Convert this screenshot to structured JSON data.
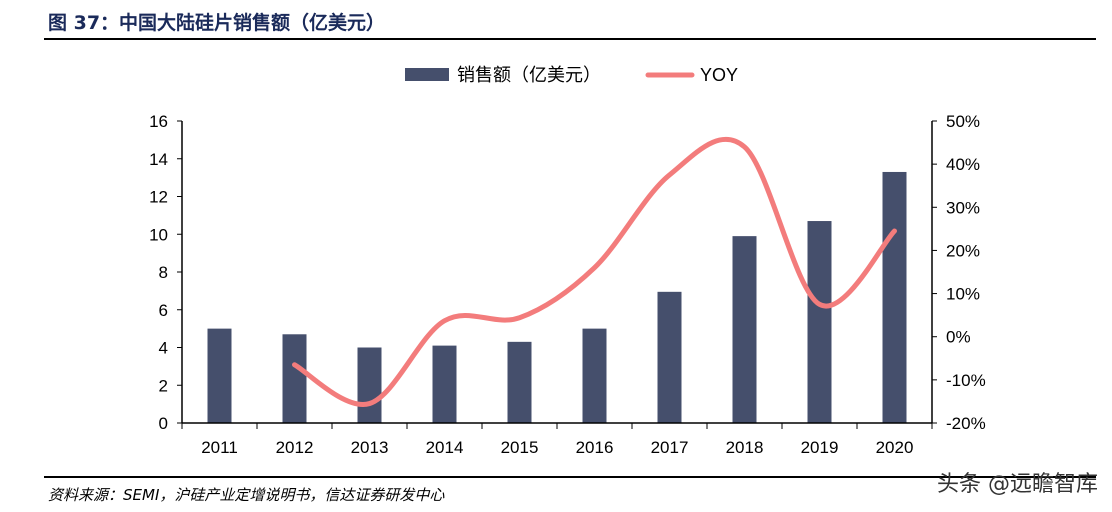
{
  "title": "图 37：中国大陆硅片销售额（亿美元）",
  "source": "资料来源：SEMI，沪硅产业定增说明书，信达证券研发中心",
  "watermark": "头条 @远瞻智库",
  "chart_data": {
    "type": "bar",
    "title": "",
    "categories": [
      "2011",
      "2012",
      "2013",
      "2014",
      "2015",
      "2016",
      "2017",
      "2018",
      "2019",
      "2020"
    ],
    "series": [
      {
        "name": "销售额（亿美元）",
        "type": "bar",
        "axis": "left",
        "color": "#454f6c",
        "values": [
          5.0,
          4.7,
          4.0,
          4.1,
          4.3,
          5.0,
          6.95,
          9.9,
          10.7,
          13.3
        ]
      },
      {
        "name": "YOY",
        "type": "line",
        "axis": "right",
        "color": "#f37c7c",
        "smooth": true,
        "values": [
          null,
          -6.5,
          -15.5,
          3.7,
          4.4,
          16,
          37.5,
          44,
          7.5,
          24.5
        ]
      }
    ],
    "y_left": {
      "min": 0,
      "max": 16,
      "ticks": [
        "0",
        "2",
        "4",
        "6",
        "8",
        "10",
        "12",
        "14",
        "16"
      ]
    },
    "y_right": {
      "min": -20,
      "max": 50,
      "ticks": [
        "-20%",
        "-10%",
        "0%",
        "10%",
        "20%",
        "30%",
        "40%",
        "50%"
      ]
    },
    "legend_position": "top",
    "grid": false
  }
}
